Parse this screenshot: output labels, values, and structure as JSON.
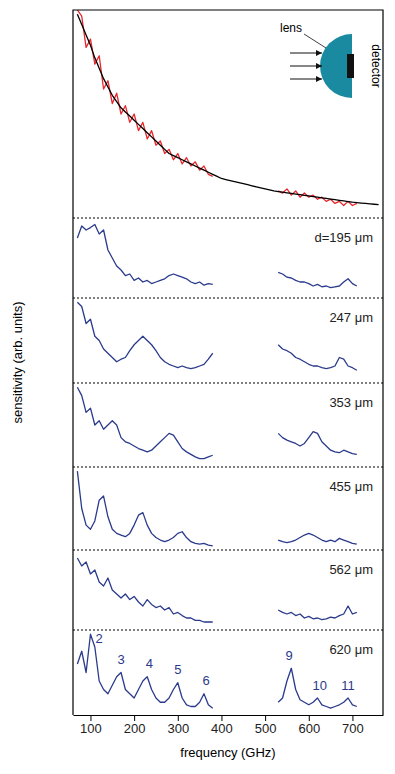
{
  "chart_data": [
    {
      "type": "line",
      "ylabel": "sensitivity (arb. units)",
      "xlim": [
        60,
        770
      ],
      "ylim": [
        0,
        1
      ],
      "tick_labels": false,
      "inset": {
        "lens_label": "lens",
        "detector_label": "detector"
      },
      "x": [
        70,
        80,
        90,
        100,
        110,
        120,
        130,
        140,
        150,
        160,
        170,
        180,
        190,
        200,
        210,
        220,
        230,
        240,
        250,
        260,
        270,
        280,
        290,
        300,
        310,
        320,
        330,
        340,
        350,
        360,
        370,
        380,
        390,
        400,
        410,
        420,
        430,
        440,
        450,
        460,
        470,
        480,
        490,
        500,
        510,
        520,
        530,
        540,
        550,
        560,
        570,
        580,
        590,
        600,
        610,
        620,
        630,
        640,
        650,
        660,
        670,
        680,
        690,
        700,
        710,
        720,
        730,
        740,
        750,
        760
      ],
      "series": [
        {
          "color": "#e8262b",
          "values": [
            1.0,
            0.97,
            0.82,
            0.86,
            0.74,
            0.78,
            0.62,
            0.66,
            0.55,
            0.6,
            0.5,
            0.54,
            0.46,
            0.5,
            0.42,
            0.46,
            0.38,
            0.42,
            0.35,
            0.37,
            0.31,
            0.33,
            0.28,
            0.31,
            0.26,
            0.29,
            0.25,
            0.27,
            0.23,
            0.25,
            0.21,
            0.2,
            null,
            null,
            null,
            null,
            null,
            null,
            null,
            null,
            null,
            null,
            null,
            null,
            null,
            null,
            0.13,
            0.12,
            0.14,
            0.11,
            0.13,
            0.1,
            0.12,
            0.1,
            0.11,
            0.09,
            0.1,
            0.08,
            0.09,
            0.07,
            0.08,
            0.06,
            0.08,
            0.06,
            0.07,
            null,
            null,
            null,
            null,
            null
          ]
        },
        {
          "color": "#000000",
          "values": [
            0.98,
            0.93,
            0.88,
            0.83,
            0.77,
            0.72,
            0.67,
            0.63,
            0.59,
            0.56,
            0.53,
            0.51,
            0.49,
            0.47,
            0.45,
            0.43,
            0.41,
            0.39,
            0.37,
            0.35,
            0.33,
            0.31,
            0.3,
            0.29,
            0.28,
            0.27,
            0.26,
            0.25,
            0.24,
            0.23,
            0.22,
            0.21,
            0.2,
            0.19,
            0.185,
            0.18,
            0.175,
            0.17,
            0.165,
            0.16,
            0.155,
            0.15,
            0.145,
            0.14,
            0.135,
            0.13,
            0.127,
            0.124,
            0.121,
            0.118,
            0.115,
            0.112,
            0.109,
            0.106,
            0.103,
            0.1,
            0.097,
            0.094,
            0.091,
            0.088,
            0.085,
            0.082,
            0.079,
            0.076,
            0.074,
            0.072,
            0.07,
            0.068,
            0.066,
            0.064
          ]
        }
      ]
    },
    {
      "type": "line",
      "label": "d=195 μm",
      "xlim": [
        60,
        770
      ],
      "ylim": [
        0,
        1
      ],
      "tick_labels": false,
      "x": [
        70,
        80,
        90,
        100,
        110,
        120,
        130,
        140,
        150,
        160,
        170,
        180,
        190,
        200,
        210,
        220,
        230,
        240,
        250,
        260,
        270,
        280,
        290,
        300,
        310,
        320,
        330,
        340,
        350,
        360,
        370,
        380,
        390,
        400,
        410,
        420,
        430,
        440,
        450,
        460,
        470,
        480,
        490,
        500,
        510,
        520,
        530,
        540,
        550,
        560,
        570,
        580,
        590,
        600,
        610,
        620,
        630,
        640,
        650,
        660,
        670,
        680,
        690,
        700,
        710,
        720,
        730,
        740,
        750,
        760
      ],
      "series": [
        {
          "color": "#2a3a8c",
          "values": [
            0.75,
            0.9,
            0.85,
            0.88,
            0.92,
            0.8,
            0.85,
            0.6,
            0.5,
            0.4,
            0.35,
            0.28,
            0.3,
            0.22,
            0.25,
            0.2,
            0.22,
            0.18,
            0.2,
            0.22,
            0.24,
            0.28,
            0.3,
            0.28,
            0.26,
            0.24,
            0.2,
            0.18,
            0.2,
            0.16,
            0.18,
            0.17,
            null,
            null,
            null,
            null,
            null,
            null,
            null,
            null,
            null,
            null,
            null,
            null,
            null,
            null,
            0.32,
            0.3,
            0.26,
            0.25,
            0.22,
            0.2,
            0.2,
            0.18,
            0.15,
            0.17,
            0.14,
            0.15,
            0.13,
            0.14,
            0.15,
            0.2,
            0.24,
            0.18,
            0.15,
            null,
            null,
            null,
            null,
            null
          ]
        }
      ]
    },
    {
      "type": "line",
      "label": "247 μm",
      "xlim": [
        60,
        770
      ],
      "ylim": [
        0,
        1
      ],
      "tick_labels": false,
      "x": [
        70,
        80,
        90,
        100,
        110,
        120,
        130,
        140,
        150,
        160,
        170,
        180,
        190,
        200,
        210,
        220,
        230,
        240,
        250,
        260,
        270,
        280,
        290,
        300,
        310,
        320,
        330,
        340,
        350,
        360,
        370,
        380,
        390,
        400,
        410,
        420,
        430,
        440,
        450,
        460,
        470,
        480,
        490,
        500,
        510,
        520,
        530,
        540,
        550,
        560,
        570,
        580,
        590,
        600,
        610,
        620,
        630,
        640,
        650,
        660,
        670,
        680,
        690,
        700,
        710,
        720,
        730,
        740,
        750,
        760
      ],
      "series": [
        {
          "color": "#2a3a8c",
          "values": [
            0.95,
            0.9,
            0.7,
            0.75,
            0.55,
            0.5,
            0.4,
            0.35,
            0.3,
            0.25,
            0.28,
            0.3,
            0.38,
            0.45,
            0.5,
            0.55,
            0.5,
            0.45,
            0.38,
            0.3,
            0.25,
            0.22,
            0.2,
            0.18,
            0.2,
            0.18,
            0.17,
            0.18,
            0.2,
            0.22,
            0.28,
            0.35,
            null,
            null,
            null,
            null,
            null,
            null,
            null,
            null,
            null,
            null,
            null,
            null,
            null,
            null,
            0.45,
            0.4,
            0.38,
            0.35,
            0.3,
            0.28,
            0.25,
            0.22,
            0.2,
            0.2,
            0.18,
            0.17,
            0.18,
            0.2,
            0.3,
            0.28,
            0.2,
            0.18,
            0.15,
            null,
            null,
            null,
            null,
            null
          ]
        }
      ]
    },
    {
      "type": "line",
      "label": "353 μm",
      "xlim": [
        60,
        770
      ],
      "ylim": [
        0,
        1
      ],
      "tick_labels": false,
      "x": [
        70,
        80,
        90,
        100,
        110,
        120,
        130,
        140,
        150,
        160,
        170,
        180,
        190,
        200,
        210,
        220,
        230,
        240,
        250,
        260,
        270,
        280,
        290,
        300,
        310,
        320,
        330,
        340,
        350,
        360,
        370,
        380,
        390,
        400,
        410,
        420,
        430,
        440,
        450,
        460,
        470,
        480,
        490,
        500,
        510,
        520,
        530,
        540,
        550,
        560,
        570,
        580,
        590,
        600,
        610,
        620,
        630,
        640,
        650,
        660,
        670,
        680,
        690,
        700,
        710,
        720,
        730,
        740,
        750,
        760
      ],
      "series": [
        {
          "color": "#2a3a8c",
          "values": [
            0.95,
            0.85,
            0.65,
            0.7,
            0.5,
            0.55,
            0.45,
            0.5,
            0.55,
            0.5,
            0.35,
            0.3,
            0.28,
            0.25,
            0.22,
            0.2,
            0.18,
            0.2,
            0.25,
            0.3,
            0.35,
            0.4,
            0.38,
            0.3,
            0.22,
            0.18,
            0.15,
            0.12,
            0.1,
            0.1,
            0.12,
            0.14,
            null,
            null,
            null,
            null,
            null,
            null,
            null,
            null,
            null,
            null,
            null,
            null,
            null,
            null,
            0.4,
            0.35,
            0.32,
            0.3,
            0.28,
            0.25,
            0.28,
            0.35,
            0.42,
            0.4,
            0.3,
            0.25,
            0.2,
            0.18,
            0.17,
            0.2,
            0.18,
            0.16,
            0.15,
            null,
            null,
            null,
            null,
            null
          ]
        }
      ]
    },
    {
      "type": "line",
      "label": "455 μm",
      "xlim": [
        60,
        770
      ],
      "ylim": [
        0,
        1
      ],
      "tick_labels": false,
      "x": [
        70,
        80,
        90,
        100,
        110,
        120,
        130,
        140,
        150,
        160,
        170,
        180,
        190,
        200,
        210,
        220,
        230,
        240,
        250,
        260,
        270,
        280,
        290,
        300,
        310,
        320,
        330,
        340,
        350,
        360,
        370,
        380,
        390,
        400,
        410,
        420,
        430,
        440,
        450,
        460,
        470,
        480,
        490,
        500,
        510,
        520,
        530,
        540,
        550,
        560,
        570,
        580,
        590,
        600,
        610,
        620,
        630,
        640,
        650,
        660,
        670,
        680,
        690,
        700,
        710,
        720,
        730,
        740,
        750,
        760
      ],
      "series": [
        {
          "color": "#2a3a8c",
          "values": [
            0.95,
            0.5,
            0.3,
            0.25,
            0.35,
            0.6,
            0.65,
            0.4,
            0.25,
            0.2,
            0.18,
            0.16,
            0.2,
            0.3,
            0.42,
            0.45,
            0.3,
            0.2,
            0.15,
            0.12,
            0.1,
            0.12,
            0.15,
            0.2,
            0.22,
            0.15,
            0.1,
            0.08,
            0.07,
            0.08,
            0.06,
            0.05,
            null,
            null,
            null,
            null,
            null,
            null,
            null,
            null,
            null,
            null,
            null,
            null,
            null,
            null,
            0.12,
            0.1,
            0.09,
            0.1,
            0.12,
            0.15,
            0.18,
            0.2,
            0.18,
            0.15,
            0.12,
            0.1,
            0.12,
            0.1,
            0.14,
            0.12,
            0.1,
            0.08,
            0.07,
            null,
            null,
            null,
            null,
            null
          ]
        }
      ]
    },
    {
      "type": "line",
      "label": "562 μm",
      "xlim": [
        60,
        770
      ],
      "ylim": [
        0,
        1
      ],
      "tick_labels": false,
      "x": [
        70,
        80,
        90,
        100,
        110,
        120,
        130,
        140,
        150,
        160,
        170,
        180,
        190,
        200,
        210,
        220,
        230,
        240,
        250,
        260,
        270,
        280,
        290,
        300,
        310,
        320,
        330,
        340,
        350,
        360,
        370,
        380,
        390,
        400,
        410,
        420,
        430,
        440,
        450,
        460,
        470,
        480,
        490,
        500,
        510,
        520,
        530,
        540,
        550,
        560,
        570,
        580,
        590,
        600,
        610,
        620,
        630,
        640,
        650,
        660,
        670,
        680,
        690,
        700,
        710,
        720,
        730,
        740,
        750,
        760
      ],
      "series": [
        {
          "color": "#2a3a8c",
          "values": [
            0.9,
            0.8,
            0.85,
            0.7,
            0.75,
            0.6,
            0.55,
            0.65,
            0.5,
            0.45,
            0.4,
            0.45,
            0.38,
            0.42,
            0.35,
            0.3,
            0.38,
            0.32,
            0.28,
            0.3,
            0.25,
            0.28,
            0.2,
            0.22,
            0.18,
            0.15,
            0.15,
            0.12,
            0.12,
            0.1,
            0.1,
            0.1,
            null,
            null,
            null,
            null,
            null,
            null,
            null,
            null,
            null,
            null,
            null,
            null,
            null,
            null,
            0.25,
            0.22,
            0.2,
            0.22,
            0.18,
            0.2,
            0.15,
            0.17,
            0.14,
            0.15,
            0.13,
            0.14,
            0.16,
            0.15,
            0.18,
            0.2,
            0.3,
            0.2,
            0.22,
            null,
            null,
            null,
            null,
            null
          ]
        }
      ]
    },
    {
      "type": "line",
      "label": "620 μm",
      "xlabel": "frequency (GHz)",
      "xlim": [
        60,
        770
      ],
      "ylim": [
        0,
        1
      ],
      "tick_labels": "x",
      "xticks": [
        100,
        200,
        300,
        400,
        500,
        600,
        700
      ],
      "x": [
        70,
        80,
        90,
        100,
        110,
        120,
        130,
        140,
        150,
        160,
        170,
        180,
        190,
        200,
        210,
        220,
        230,
        240,
        250,
        260,
        270,
        280,
        290,
        300,
        310,
        320,
        330,
        340,
        350,
        360,
        370,
        380,
        390,
        400,
        410,
        420,
        430,
        440,
        450,
        460,
        470,
        480,
        490,
        500,
        510,
        520,
        530,
        540,
        550,
        560,
        570,
        580,
        590,
        600,
        610,
        620,
        630,
        640,
        650,
        660,
        670,
        680,
        690,
        700,
        710,
        720,
        730,
        740,
        750,
        760
      ],
      "series": [
        {
          "color": "#2a3a8c",
          "values": [
            0.6,
            0.75,
            0.5,
            0.95,
            0.8,
            0.4,
            0.3,
            0.25,
            0.35,
            0.45,
            0.5,
            0.3,
            0.25,
            0.2,
            0.3,
            0.4,
            0.45,
            0.3,
            0.2,
            0.15,
            0.15,
            0.2,
            0.3,
            0.38,
            0.2,
            0.12,
            0.1,
            0.1,
            0.15,
            0.25,
            0.12,
            0.08,
            null,
            null,
            null,
            null,
            null,
            null,
            null,
            null,
            null,
            null,
            null,
            null,
            null,
            null,
            0.15,
            0.2,
            0.4,
            0.55,
            0.3,
            0.18,
            0.15,
            0.12,
            0.15,
            0.2,
            0.12,
            0.1,
            0.08,
            0.1,
            0.12,
            0.15,
            0.2,
            0.12,
            0.1,
            null,
            null,
            null,
            null,
            null
          ]
        }
      ],
      "annotations": [
        {
          "text": "2",
          "x": 120,
          "y": 0.85
        },
        {
          "text": "3",
          "x": 170,
          "y": 0.6
        },
        {
          "text": "4",
          "x": 235,
          "y": 0.55
        },
        {
          "text": "5",
          "x": 300,
          "y": 0.48
        },
        {
          "text": "6",
          "x": 365,
          "y": 0.35
        },
        {
          "text": "9",
          "x": 555,
          "y": 0.65
        },
        {
          "text": "10",
          "x": 625,
          "y": 0.3
        },
        {
          "text": "11",
          "x": 690,
          "y": 0.3
        }
      ]
    }
  ]
}
